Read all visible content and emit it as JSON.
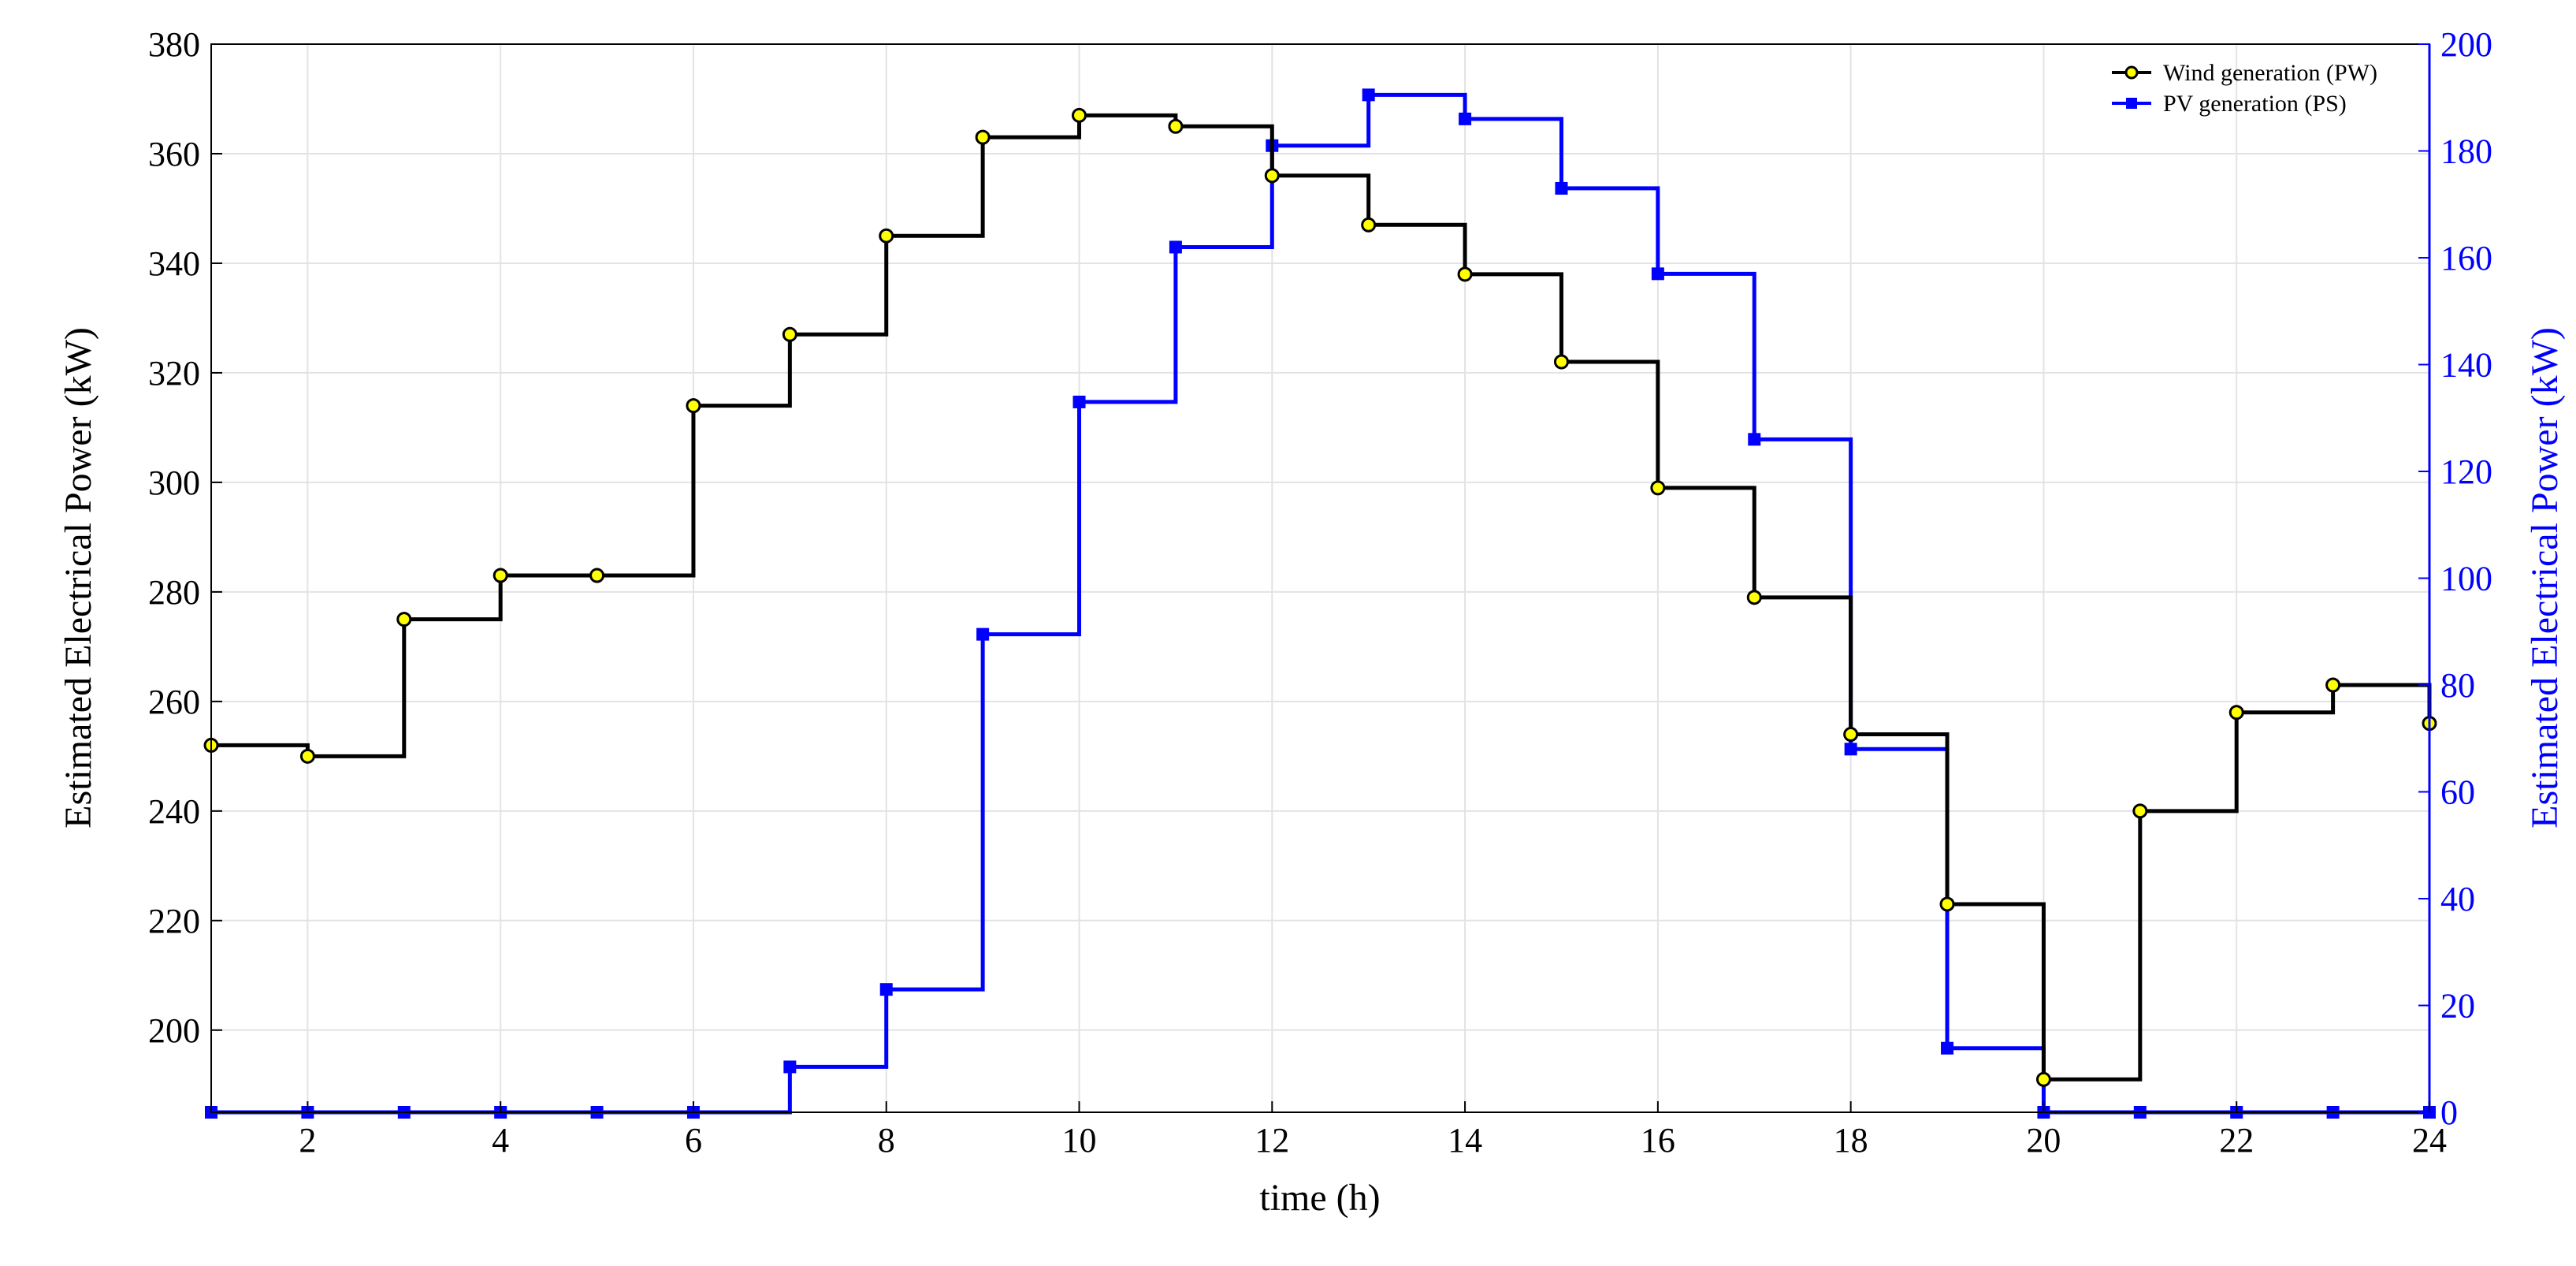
{
  "chart_data": {
    "type": "line",
    "step": "post",
    "xlabel": "time (h)",
    "ylabel_left": "Estimated Electrical Power (kW)",
    "ylabel_right": "Estimated Electrical Power (kW)",
    "xlim": [
      1,
      24
    ],
    "ylim_left": [
      185,
      380
    ],
    "ylim_right": [
      0,
      200
    ],
    "x_ticks": [
      2,
      4,
      6,
      8,
      10,
      12,
      14,
      16,
      18,
      20,
      22,
      24
    ],
    "y_ticks_left": [
      200,
      220,
      240,
      260,
      280,
      300,
      320,
      340,
      360,
      380
    ],
    "y_ticks_right": [
      0,
      20,
      40,
      60,
      80,
      100,
      120,
      140,
      160,
      180,
      200
    ],
    "grid": true,
    "legend_position": "top-right",
    "colors": {
      "wind": "#000000",
      "wind_marker_fill": "#ffff00",
      "pv": "#0000ff",
      "right_axis": "#0000ff",
      "grid": "#e3e3e3"
    },
    "series": [
      {
        "name": "Wind generation (PW)",
        "axis": "left",
        "x": [
          1,
          2,
          3,
          4,
          5,
          6,
          7,
          8,
          9,
          10,
          11,
          12,
          13,
          14,
          15,
          16,
          17,
          18,
          19,
          20,
          21,
          22,
          23,
          24
        ],
        "values": [
          252,
          250,
          275,
          283,
          283,
          314,
          327,
          345,
          363,
          367,
          365,
          356,
          347,
          338,
          322,
          299,
          279,
          254,
          223,
          191,
          240,
          258,
          263,
          256
        ]
      },
      {
        "name": "PV generation (PS)",
        "axis": "right",
        "x": [
          1,
          2,
          3,
          4,
          5,
          6,
          7,
          8,
          9,
          10,
          11,
          12,
          13,
          14,
          15,
          16,
          17,
          18,
          19,
          20,
          21,
          22,
          23,
          24
        ],
        "values": [
          0,
          0,
          0,
          0,
          0,
          0,
          8.5,
          23,
          89.5,
          133,
          162,
          181,
          190.5,
          186,
          173,
          157,
          126,
          68,
          12,
          0,
          0,
          0,
          0,
          0
        ]
      }
    ]
  }
}
